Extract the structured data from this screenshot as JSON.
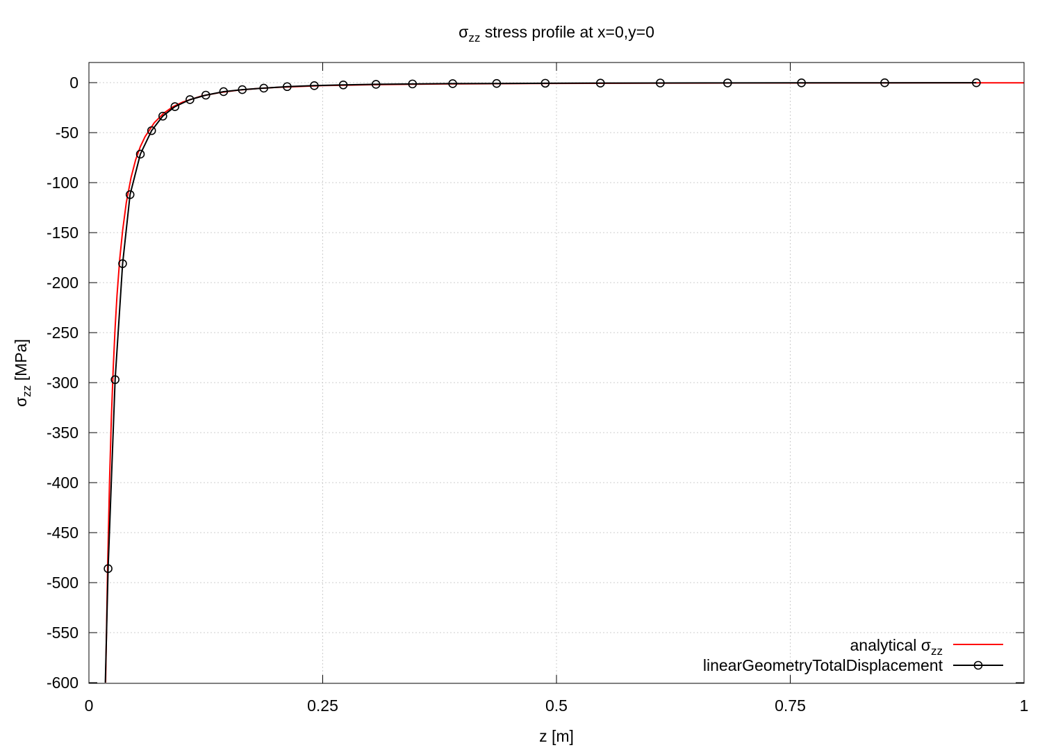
{
  "chart_data": {
    "type": "line",
    "title_main": "σ",
    "title_sub": "zz",
    "title_rest": " stress profile at x=0,y=0",
    "xlabel": "z [m]",
    "ylabel_main": "σ",
    "ylabel_sub": "zz",
    "ylabel_rest": " [MPa]",
    "xlim": [
      0,
      1
    ],
    "ylim": [
      -600,
      20
    ],
    "x_ticks": [
      0,
      0.25,
      0.5,
      0.75,
      1
    ],
    "x_tick_labels": [
      "0",
      "0.25",
      "0.5",
      "0.75",
      "1"
    ],
    "y_ticks": [
      0,
      -50,
      -100,
      -150,
      -200,
      -250,
      -300,
      -350,
      -400,
      -450,
      -500,
      -550,
      -600
    ],
    "y_tick_labels": [
      "0",
      "-50",
      "-100",
      "-150",
      "-200",
      "-250",
      "-300",
      "-350",
      "-400",
      "-450",
      "-500",
      "-550",
      "-600"
    ],
    "grid": true,
    "legend_position": "bottom-right",
    "series": [
      {
        "name_main": "analytical σ",
        "name_sub": "zz",
        "color": "#ff0000",
        "marker": "none",
        "x": [
          0.0178,
          0.02,
          0.022,
          0.024,
          0.026,
          0.028,
          0.03,
          0.033,
          0.036,
          0.04,
          0.045,
          0.05,
          0.055,
          0.06,
          0.07,
          0.08,
          0.09,
          0.1,
          0.12,
          0.14,
          0.16,
          0.18,
          0.2,
          0.25,
          0.3,
          0.35,
          0.4,
          0.5,
          0.6,
          0.7,
          0.8,
          0.9,
          1.0
        ],
        "y": [
          -600,
          -485,
          -400,
          -335,
          -285,
          -245,
          -213,
          -176,
          -148,
          -120,
          -95,
          -77,
          -64,
          -54,
          -40,
          -30.5,
          -24,
          -19.5,
          -13.5,
          -9.9,
          -7.5,
          -5.9,
          -4.8,
          -3.0,
          -2.1,
          -1.5,
          -1.15,
          -0.74,
          -0.51,
          -0.38,
          -0.29,
          -0.23,
          -0.19
        ]
      },
      {
        "name": "linearGeometryTotalDisplacement",
        "color": "#000000",
        "marker": "circle",
        "x": [
          0.0175,
          0.0205,
          0.028,
          0.036,
          0.044,
          0.055,
          0.067,
          0.079,
          0.092,
          0.108,
          0.125,
          0.144,
          0.164,
          0.187,
          0.212,
          0.241,
          0.272,
          0.307,
          0.346,
          0.389,
          0.436,
          0.488,
          0.547,
          0.611,
          0.683,
          0.762,
          0.851,
          0.949
        ],
        "y": [
          -600,
          -486,
          -297,
          -181,
          -112,
          -71.5,
          -48,
          -33.5,
          -24,
          -17,
          -12.5,
          -9,
          -7,
          -5.5,
          -4,
          -3,
          -2.3,
          -1.7,
          -1.3,
          -1.0,
          -0.8,
          -0.6,
          -0.45,
          -0.35,
          -0.27,
          -0.2,
          -0.15,
          -0.1
        ]
      }
    ]
  }
}
